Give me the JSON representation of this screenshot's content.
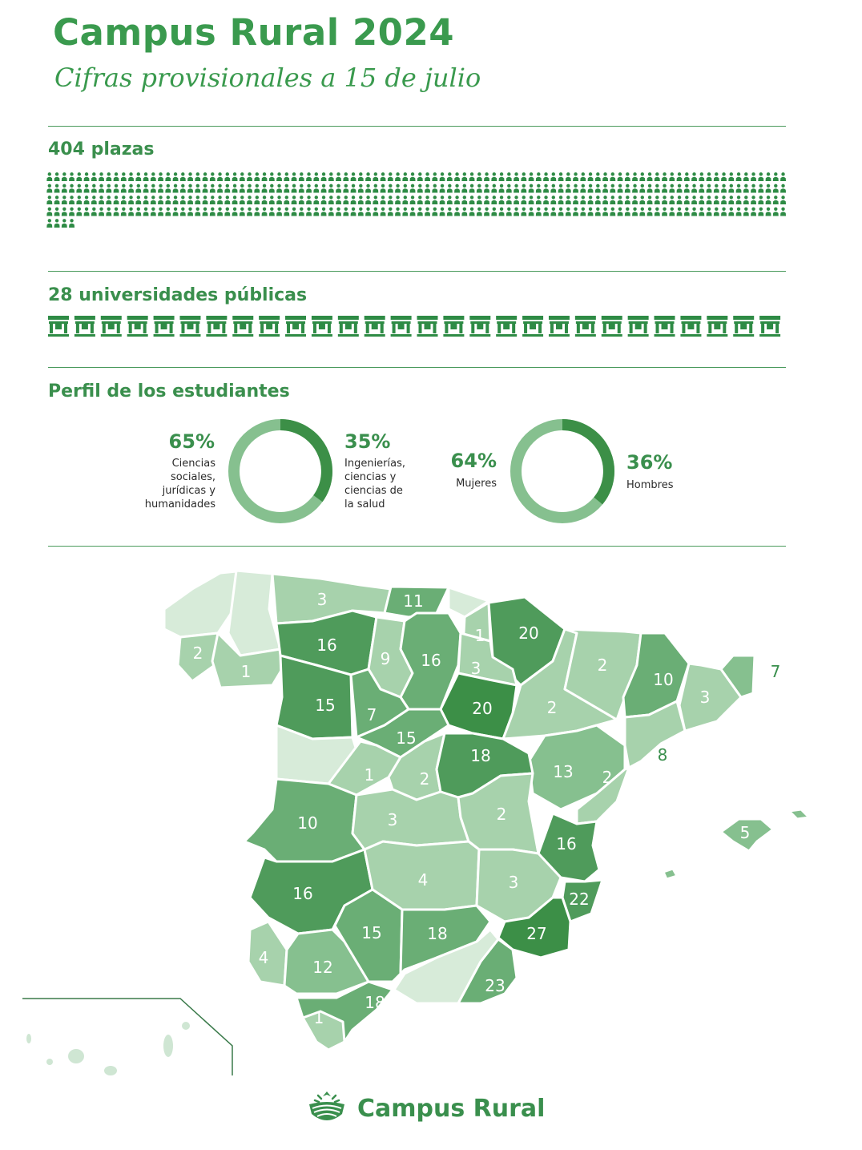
{
  "header": {
    "title": "Campus Rural 2024",
    "subtitle": "Cifras provisionales a 15 de julio"
  },
  "plazas": {
    "heading": "404 plazas",
    "count": 404,
    "icon": "person-icon"
  },
  "universidades": {
    "heading": "28 universidades públicas",
    "count": 28,
    "icon": "university-building-icon"
  },
  "perfil": {
    "heading": "Perfil de los estudiantes",
    "rama": {
      "left_pct": "65%",
      "left_label": "Ciencias sociales, jurídicas y humanidades",
      "left_lines": [
        "Ciencias",
        "sociales,",
        "jurídicas y",
        "humanidades"
      ],
      "right_pct": "35%",
      "right_label": "Ingenierías, ciencias y ciencias de la salud",
      "right_lines": [
        "Ingenierías,",
        "ciencias y",
        "ciencias de",
        "la salud"
      ],
      "value_dark": 0.35
    },
    "sexo": {
      "left_pct": "64%",
      "left_label": "Mujeres",
      "right_pct": "36%",
      "right_label": "Hombres",
      "value_dark": 0.36
    }
  },
  "map": {
    "province_values": [
      "3",
      "11",
      "1",
      "20",
      "2",
      "16",
      "1",
      "9",
      "16",
      "3",
      "2",
      "10",
      "7",
      "15",
      "7",
      "20",
      "3",
      "2",
      "15",
      "8",
      "18",
      "1",
      "2",
      "13",
      "2",
      "10",
      "3",
      "2",
      "16",
      "5",
      "16",
      "4",
      "3",
      "22",
      "15",
      "18",
      "27",
      "4",
      "12",
      "23",
      "18",
      "1"
    ]
  },
  "colors": {
    "brand": "#3a8f4d",
    "ring_dark": "#3c8f47",
    "ring_light": "#86c08f",
    "icon": "#2e8b45"
  },
  "footer": {
    "brand": "Campus Rural"
  }
}
